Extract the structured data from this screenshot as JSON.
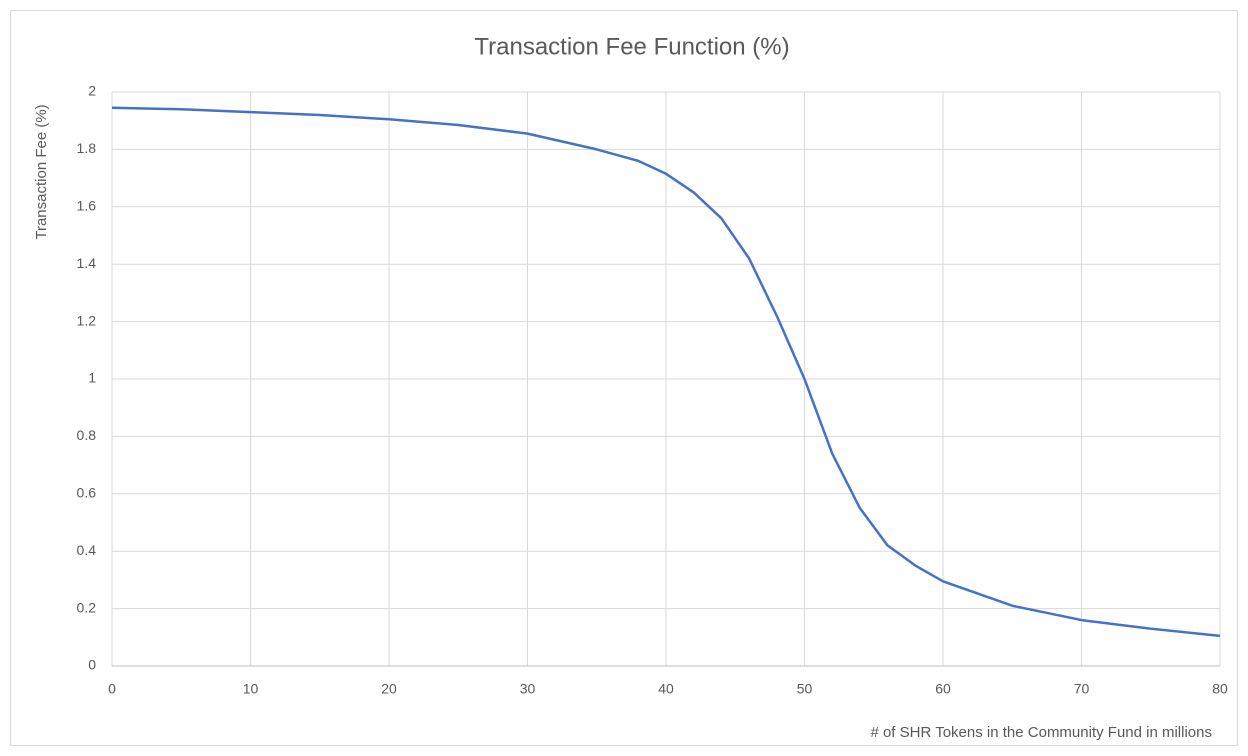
{
  "chart_data": {
    "type": "line",
    "title": "Transaction Fee Function (%)",
    "xlabel": "# of SHR Tokens in the Community Fund in millions",
    "ylabel": "Transaction Fee (%)",
    "series": [
      {
        "name": "Transaction Fee",
        "color": "#4472c4",
        "x": [
          0,
          5,
          10,
          15,
          20,
          25,
          30,
          35,
          38,
          40,
          42,
          44,
          46,
          48,
          50,
          52,
          54,
          56,
          58,
          60,
          65,
          70,
          75,
          80
        ],
        "values": [
          1.945,
          1.94,
          1.93,
          1.92,
          1.905,
          1.885,
          1.855,
          1.8,
          1.76,
          1.715,
          1.65,
          1.56,
          1.42,
          1.22,
          1.0,
          0.74,
          0.55,
          0.42,
          0.35,
          0.295,
          0.21,
          0.16,
          0.13,
          0.105
        ]
      }
    ],
    "xlim": [
      0,
      80
    ],
    "xticks": [
      0,
      10,
      20,
      30,
      40,
      50,
      60,
      70,
      80
    ],
    "ylim": [
      0,
      2
    ],
    "yticks": [
      0,
      0.2,
      0.4,
      0.6,
      0.8,
      1,
      1.2,
      1.4,
      1.6,
      1.8,
      2
    ],
    "grid": true
  }
}
